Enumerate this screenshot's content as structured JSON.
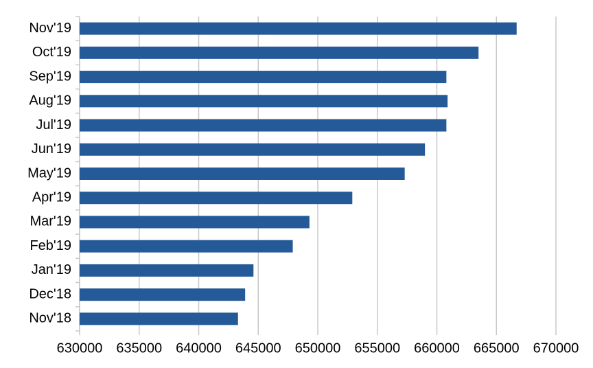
{
  "chart_data": {
    "type": "barh",
    "categories": [
      "Nov'18",
      "Dec'18",
      "Jan'19",
      "Feb'19",
      "Mar'19",
      "Apr'19",
      "May'19",
      "Jun'19",
      "Jul'19",
      "Aug'19",
      "Sep'19",
      "Oct'19",
      "Nov'19"
    ],
    "values": [
      643300,
      643900,
      644600,
      647900,
      649300,
      652900,
      657300,
      659000,
      660800,
      660900,
      660800,
      663500,
      666700
    ],
    "color": "#245a97",
    "xlim": [
      630000,
      670000
    ],
    "xticks": [
      630000,
      635000,
      640000,
      645000,
      650000,
      655000,
      660000,
      665000,
      670000
    ],
    "grid": true
  }
}
